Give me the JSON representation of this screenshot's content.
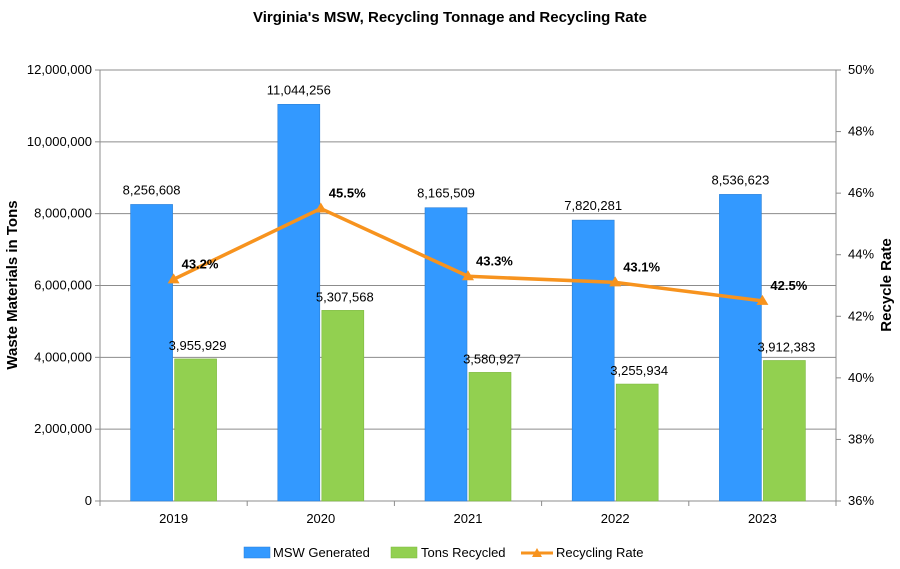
{
  "chart_data": {
    "type": "bar",
    "title": "Virginia's MSW, Recycling Tonnage and Recycling Rate",
    "categories": [
      "2019",
      "2020",
      "2021",
      "2022",
      "2023"
    ],
    "ylabel": "Waste Materials in Tons",
    "y2label": "Recycle Rate",
    "ylim": [
      0,
      12000000
    ],
    "y2lim": [
      36,
      50
    ],
    "yticks": [
      "0",
      "2,000,000",
      "4,000,000",
      "6,000,000",
      "8,000,000",
      "10,000,000",
      "12,000,000"
    ],
    "y2ticks": [
      "36%",
      "38%",
      "40%",
      "42%",
      "44%",
      "46%",
      "48%",
      "50%"
    ],
    "grid": true,
    "legend_position": "bottom",
    "series": [
      {
        "name": "MSW Generated",
        "type": "bar",
        "color": "#3399FF",
        "values": [
          8256608,
          11044256,
          8165509,
          7820281,
          8536623
        ],
        "labels": [
          "8,256,608",
          "11,044,256",
          "8,165,509",
          "7,820,281",
          "8,536,623"
        ]
      },
      {
        "name": "Tons Recycled",
        "type": "bar",
        "color": "#92D050",
        "values": [
          3955929,
          5307568,
          3580927,
          3255934,
          3912383
        ],
        "labels": [
          "3,955,929",
          "5,307,568",
          "3,580,927",
          "3,255,934",
          "3,912,383"
        ]
      },
      {
        "name": "Recycling Rate",
        "type": "line",
        "axis": "secondary",
        "color": "#F7931E",
        "values": [
          43.2,
          45.5,
          43.3,
          43.1,
          42.5
        ],
        "labels": [
          "43.2%",
          "45.5%",
          "43.3%",
          "43.1%",
          "42.5%"
        ]
      }
    ]
  }
}
